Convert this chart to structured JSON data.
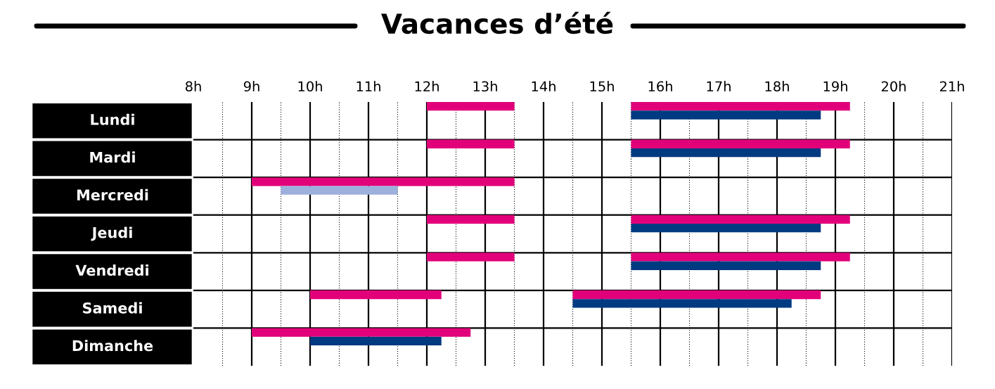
{
  "chart_data": {
    "type": "bar",
    "orientation": "horizontal",
    "title": "Vacances d’été",
    "categories": [
      "Lundi",
      "Mardi",
      "Mercredi",
      "Jeudi",
      "Vendredi",
      "Samedi",
      "Dimanche"
    ],
    "series": [
      {
        "color": "#e2007a",
        "base": [
          12,
          12,
          9,
          12,
          12,
          10,
          9
        ],
        "values": [
          1.5,
          1.5,
          4.5,
          1.5,
          1.5,
          2.25,
          3.75
        ]
      },
      {
        "color": "#e2007a",
        "base": [
          15.5,
          15.5,
          null,
          15.5,
          15.5,
          14.5,
          null
        ],
        "values": [
          3.75,
          3.75,
          null,
          3.75,
          3.75,
          4.25,
          null
        ]
      },
      {
        "color": "#003a80",
        "base": [
          15.5,
          15.5,
          null,
          15.5,
          15.5,
          14.5,
          10
        ],
        "values": [
          3.25,
          3.25,
          null,
          3.25,
          3.25,
          3.75,
          2.25
        ]
      },
      {
        "color": "#9db0dc",
        "base": [
          null,
          null,
          9.5,
          null,
          null,
          null,
          null
        ],
        "values": [
          null,
          null,
          2,
          null,
          null,
          null,
          null
        ]
      }
    ],
    "xlim": [
      8,
      21
    ],
    "xticks": [
      {
        "value": 8,
        "label": "8h"
      },
      {
        "value": 8.5,
        "label": null
      },
      {
        "value": 9,
        "label": "9h"
      },
      {
        "value": 9.5,
        "label": null
      },
      {
        "value": 10,
        "label": "10h"
      },
      {
        "value": 10.5,
        "label": null
      },
      {
        "value": 11,
        "label": "11h"
      },
      {
        "value": 11.5,
        "label": null
      },
      {
        "value": 12,
        "label": "12h"
      },
      {
        "value": 12.5,
        "label": null
      },
      {
        "value": 13,
        "label": "13h"
      },
      {
        "value": 13.5,
        "label": null
      },
      {
        "value": 14,
        "label": "14h"
      },
      {
        "value": 14.5,
        "label": null
      },
      {
        "value": 15,
        "label": "15h"
      },
      {
        "value": 15.5,
        "label": null
      },
      {
        "value": 16,
        "label": "16h"
      },
      {
        "value": 16.5,
        "label": null
      },
      {
        "value": 17,
        "label": "17h"
      },
      {
        "value": 17.5,
        "label": null
      },
      {
        "value": 18,
        "label": "18h"
      },
      {
        "value": 18.5,
        "label": null
      },
      {
        "value": 19,
        "label": "19h"
      },
      {
        "value": 19.5,
        "label": null
      },
      {
        "value": 20,
        "label": "20h"
      },
      {
        "value": 20.5,
        "label": null
      },
      {
        "value": 21,
        "label": "21h"
      }
    ],
    "grid": true
  }
}
